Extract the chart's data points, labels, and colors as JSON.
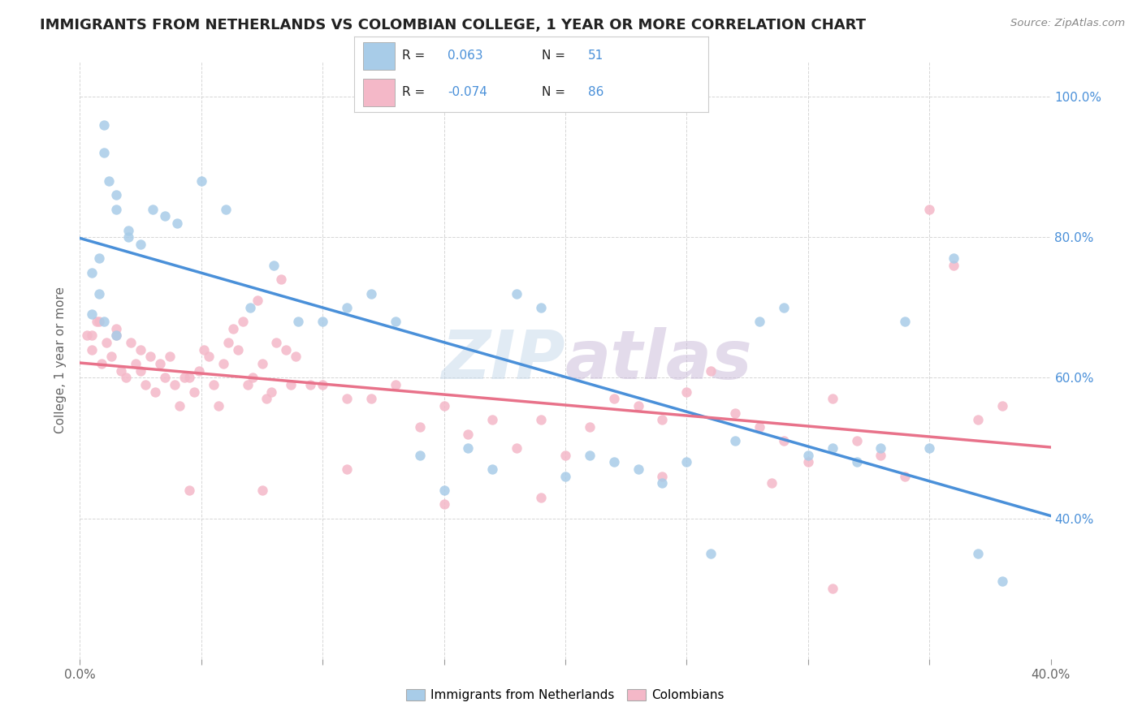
{
  "title": "IMMIGRANTS FROM NETHERLANDS VS COLOMBIAN COLLEGE, 1 YEAR OR MORE CORRELATION CHART",
  "source": "Source: ZipAtlas.com",
  "ylabel": "College, 1 year or more",
  "xlim": [
    0.0,
    0.4
  ],
  "ylim": [
    0.2,
    1.05
  ],
  "x_ticks": [
    0.0,
    0.05,
    0.1,
    0.15,
    0.2,
    0.25,
    0.3,
    0.35,
    0.4
  ],
  "x_tick_labels": [
    "0.0%",
    "",
    "",
    "",
    "",
    "",
    "",
    "",
    "40.0%"
  ],
  "y_ticks": [
    0.2,
    0.4,
    0.6,
    0.8,
    1.0
  ],
  "y_tick_labels_right": [
    "",
    "40.0%",
    "60.0%",
    "80.0%",
    "100.0%"
  ],
  "blue_R": 0.063,
  "blue_N": 51,
  "pink_R": -0.074,
  "pink_N": 86,
  "blue_color": "#a8cce8",
  "pink_color": "#f4b8c8",
  "blue_line_color": "#4a90d9",
  "pink_line_color": "#e8728a",
  "background_color": "#ffffff",
  "grid_color": "#cccccc",
  "watermark": "ZIPatlas",
  "legend_label_blue": "Immigrants from Netherlands",
  "legend_label_pink": "Colombians",
  "blue_scatter_x": [
    0.005,
    0.008,
    0.01,
    0.012,
    0.015,
    0.005,
    0.008,
    0.01,
    0.015,
    0.02,
    0.01,
    0.015,
    0.02,
    0.025,
    0.03,
    0.035,
    0.04,
    0.05,
    0.06,
    0.07,
    0.08,
    0.09,
    0.1,
    0.11,
    0.12,
    0.13,
    0.14,
    0.15,
    0.16,
    0.17,
    0.18,
    0.19,
    0.2,
    0.21,
    0.22,
    0.23,
    0.24,
    0.25,
    0.26,
    0.27,
    0.28,
    0.29,
    0.3,
    0.31,
    0.32,
    0.33,
    0.34,
    0.35,
    0.36,
    0.37,
    0.38
  ],
  "blue_scatter_y": [
    0.69,
    0.72,
    0.96,
    0.88,
    0.84,
    0.75,
    0.77,
    0.68,
    0.66,
    0.81,
    0.92,
    0.86,
    0.8,
    0.79,
    0.84,
    0.83,
    0.82,
    0.88,
    0.84,
    0.7,
    0.76,
    0.68,
    0.68,
    0.7,
    0.72,
    0.68,
    0.49,
    0.44,
    0.5,
    0.47,
    0.72,
    0.7,
    0.46,
    0.49,
    0.48,
    0.47,
    0.45,
    0.48,
    0.35,
    0.51,
    0.68,
    0.7,
    0.49,
    0.5,
    0.48,
    0.5,
    0.68,
    0.5,
    0.77,
    0.35,
    0.31
  ],
  "pink_scatter_x": [
    0.003,
    0.005,
    0.007,
    0.009,
    0.011,
    0.013,
    0.015,
    0.017,
    0.019,
    0.021,
    0.023,
    0.025,
    0.027,
    0.029,
    0.031,
    0.033,
    0.035,
    0.037,
    0.039,
    0.041,
    0.043,
    0.045,
    0.047,
    0.049,
    0.051,
    0.053,
    0.055,
    0.057,
    0.059,
    0.061,
    0.063,
    0.065,
    0.067,
    0.069,
    0.071,
    0.073,
    0.075,
    0.077,
    0.079,
    0.081,
    0.083,
    0.085,
    0.087,
    0.089,
    0.095,
    0.1,
    0.11,
    0.12,
    0.13,
    0.14,
    0.15,
    0.16,
    0.17,
    0.18,
    0.19,
    0.2,
    0.21,
    0.22,
    0.23,
    0.24,
    0.25,
    0.26,
    0.27,
    0.28,
    0.29,
    0.3,
    0.31,
    0.32,
    0.33,
    0.34,
    0.35,
    0.36,
    0.37,
    0.38,
    0.31,
    0.285,
    0.24,
    0.19,
    0.15,
    0.11,
    0.075,
    0.045,
    0.025,
    0.015,
    0.008,
    0.005
  ],
  "pink_scatter_y": [
    0.66,
    0.64,
    0.68,
    0.62,
    0.65,
    0.63,
    0.67,
    0.61,
    0.6,
    0.65,
    0.62,
    0.61,
    0.59,
    0.63,
    0.58,
    0.62,
    0.6,
    0.63,
    0.59,
    0.56,
    0.6,
    0.6,
    0.58,
    0.61,
    0.64,
    0.63,
    0.59,
    0.56,
    0.62,
    0.65,
    0.67,
    0.64,
    0.68,
    0.59,
    0.6,
    0.71,
    0.62,
    0.57,
    0.58,
    0.65,
    0.74,
    0.64,
    0.59,
    0.63,
    0.59,
    0.59,
    0.57,
    0.57,
    0.59,
    0.53,
    0.56,
    0.52,
    0.54,
    0.5,
    0.54,
    0.49,
    0.53,
    0.57,
    0.56,
    0.54,
    0.58,
    0.61,
    0.55,
    0.53,
    0.51,
    0.48,
    0.57,
    0.51,
    0.49,
    0.46,
    0.84,
    0.76,
    0.54,
    0.56,
    0.3,
    0.45,
    0.46,
    0.43,
    0.42,
    0.47,
    0.44,
    0.44,
    0.64,
    0.66,
    0.68,
    0.66
  ]
}
